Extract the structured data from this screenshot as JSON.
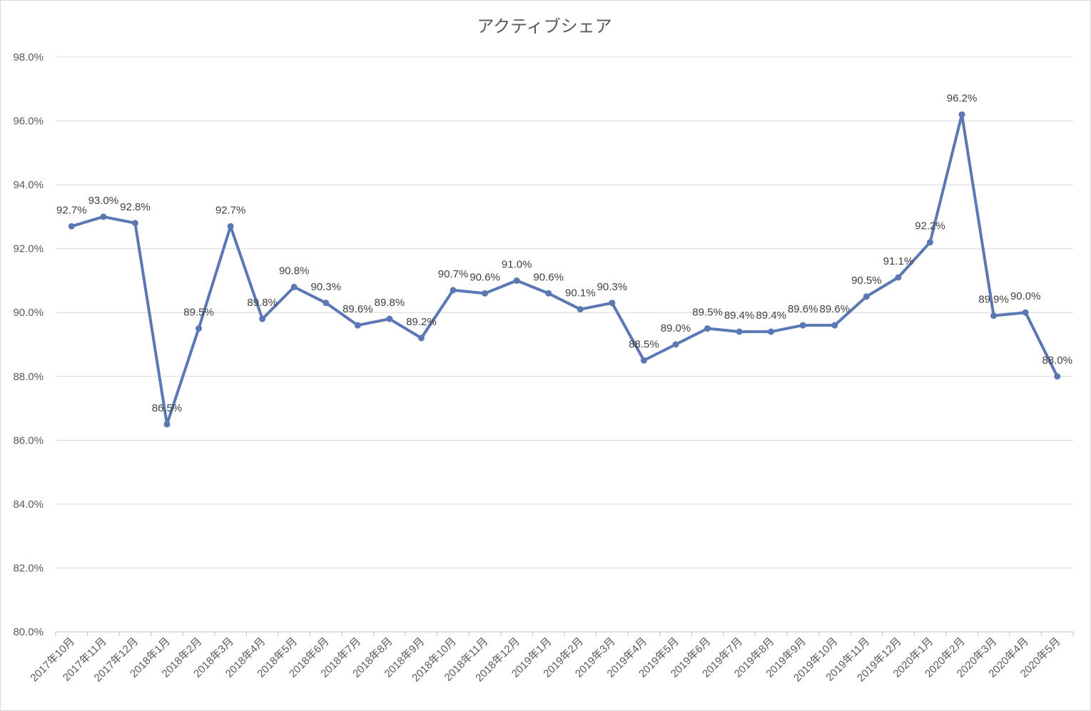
{
  "chart_data": {
    "type": "line",
    "title": "アクティブシェア",
    "xlabel": "",
    "ylabel": "",
    "ylim": [
      80.0,
      98.0
    ],
    "y_ticks": [
      "80.0%",
      "82.0%",
      "84.0%",
      "86.0%",
      "88.0%",
      "90.0%",
      "92.0%",
      "94.0%",
      "96.0%",
      "98.0%"
    ],
    "grid": true,
    "legend": "none",
    "categories": [
      "2017年10月",
      "2017年11月",
      "2017年12月",
      "2018年1月",
      "2018年2月",
      "2018年3月",
      "2018年4月",
      "2018年5月",
      "2018年6月",
      "2018年7月",
      "2018年8月",
      "2018年9月",
      "2018年10月",
      "2018年11月",
      "2018年12月",
      "2019年1月",
      "2019年2月",
      "2019年3月",
      "2019年4月",
      "2019年5月",
      "2019年6月",
      "2019年7月",
      "2019年8月",
      "2019年9月",
      "2019年10月",
      "2019年11月",
      "2019年12月",
      "2020年1月",
      "2020年2月",
      "2020年3月",
      "2020年4月",
      "2020年5月"
    ],
    "values": [
      92.7,
      93.0,
      92.8,
      86.5,
      89.5,
      92.7,
      89.8,
      90.8,
      90.3,
      89.6,
      89.8,
      89.2,
      90.7,
      90.6,
      91.0,
      90.6,
      90.1,
      90.3,
      88.5,
      89.0,
      89.5,
      89.4,
      89.4,
      89.6,
      89.6,
      90.5,
      91.1,
      92.2,
      96.2,
      89.9,
      90.0,
      88.0
    ],
    "data_labels": [
      "92.7%",
      "93.0%",
      "92.8%",
      "86.5%",
      "89.5%",
      "92.7%",
      "89.8%",
      "90.8%",
      "90.3%",
      "89.6%",
      "89.8%",
      "89.2%",
      "90.7%",
      "90.6%",
      "91.0%",
      "90.6%",
      "90.1%",
      "90.3%",
      "88.5%",
      "89.0%",
      "89.5%",
      "89.4%",
      "89.4%",
      "89.6%",
      "89.6%",
      "90.5%",
      "91.1%",
      "92.2%",
      "96.2%",
      "89.9%",
      "90.0%",
      "88.0%"
    ],
    "colors": {
      "line": "#5b78b5",
      "grid": "#d9d9d9",
      "text": "#595959"
    }
  }
}
